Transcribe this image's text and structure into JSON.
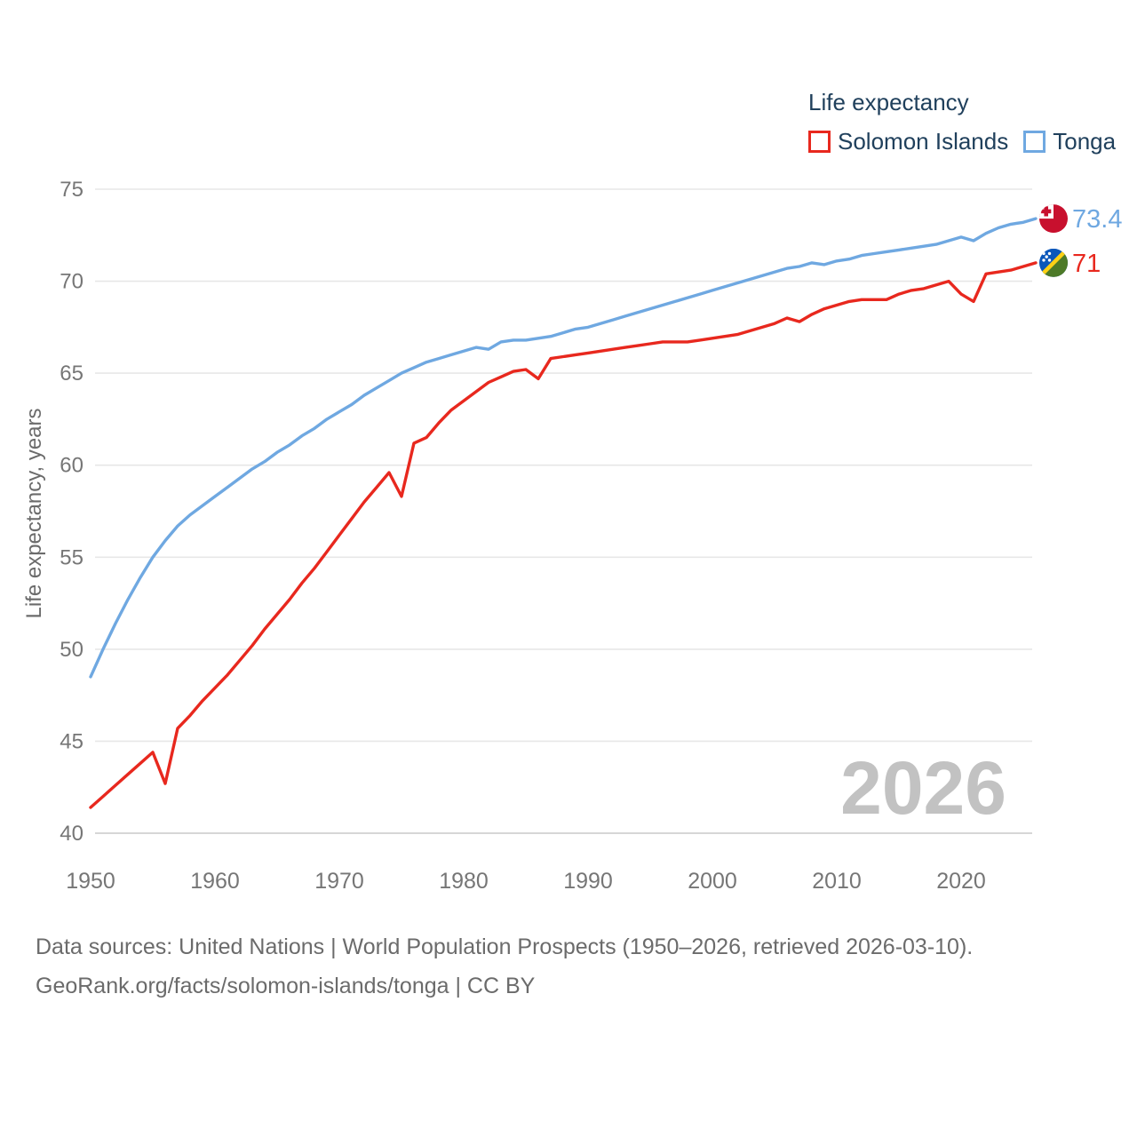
{
  "legend": {
    "title": "Life expectancy",
    "series": [
      {
        "label": "Solomon Islands",
        "color": "#E8281E"
      },
      {
        "label": "Tonga",
        "color": "#6FA8E1"
      }
    ]
  },
  "watermark": "2026",
  "footer": {
    "line1": "Data sources: United Nations | World Population Prospects (1950–2026, retrieved 2026-03-10).",
    "line2": "GeoRank.org/facts/solomon-islands/tonga | CC BY"
  },
  "colors": {
    "tick_label": "#767676",
    "axis_title": "#6b6b6b",
    "gridline": "#e7e7e7",
    "gridline_bottom": "#c9c9c9",
    "watermark": "#c2c2c2"
  },
  "chart_data": {
    "type": "line",
    "title": "Life expectancy",
    "ylabel": "Life expectancy, years",
    "x": {
      "start": 1950,
      "end": 2026,
      "step": 1
    },
    "x_ticks": [
      1950,
      1960,
      1970,
      1980,
      1990,
      2000,
      2010,
      2020
    ],
    "y_ticks": [
      40,
      45,
      50,
      55,
      60,
      65,
      70,
      75
    ],
    "ylim": [
      40,
      75
    ],
    "grid": "horizontal",
    "legend_position": "top-right",
    "series": [
      {
        "name": "Solomon Islands",
        "color": "#E8281E",
        "flag_icon": "solomon-islands-flag-icon",
        "end_label": "71",
        "end_value": 71.0,
        "values": [
          41.4,
          42.0,
          42.6,
          43.2,
          43.8,
          44.4,
          42.7,
          45.7,
          46.4,
          47.2,
          47.9,
          48.6,
          49.4,
          50.2,
          51.1,
          51.9,
          52.7,
          53.6,
          54.4,
          55.3,
          56.2,
          57.1,
          58.0,
          58.8,
          59.6,
          58.3,
          61.2,
          61.5,
          62.3,
          63.0,
          63.5,
          64.0,
          64.5,
          64.8,
          65.1,
          65.2,
          64.7,
          65.8,
          65.9,
          66.0,
          66.1,
          66.2,
          66.3,
          66.4,
          66.5,
          66.6,
          66.7,
          66.7,
          66.7,
          66.8,
          66.9,
          67.0,
          67.1,
          67.3,
          67.5,
          67.7,
          68.0,
          67.8,
          68.2,
          68.5,
          68.7,
          68.9,
          69.0,
          69.0,
          69.0,
          69.3,
          69.5,
          69.6,
          69.8,
          70.0,
          69.3,
          68.9,
          70.4,
          70.5,
          70.6,
          70.8,
          71.0
        ]
      },
      {
        "name": "Tonga",
        "color": "#6FA8E1",
        "flag_icon": "tonga-flag-icon",
        "end_label": "73.4",
        "end_value": 73.4,
        "values": [
          48.5,
          50.0,
          51.4,
          52.7,
          53.9,
          55.0,
          55.9,
          56.7,
          57.3,
          57.8,
          58.3,
          58.8,
          59.3,
          59.8,
          60.2,
          60.7,
          61.1,
          61.6,
          62.0,
          62.5,
          62.9,
          63.3,
          63.8,
          64.2,
          64.6,
          65.0,
          65.3,
          65.6,
          65.8,
          66.0,
          66.2,
          66.4,
          66.3,
          66.7,
          66.8,
          66.8,
          66.9,
          67.0,
          67.2,
          67.4,
          67.5,
          67.7,
          67.9,
          68.1,
          68.3,
          68.5,
          68.7,
          68.9,
          69.1,
          69.3,
          69.5,
          69.7,
          69.9,
          70.1,
          70.3,
          70.5,
          70.7,
          70.8,
          71.0,
          70.9,
          71.1,
          71.2,
          71.4,
          71.5,
          71.6,
          71.7,
          71.8,
          71.9,
          72.0,
          72.2,
          72.4,
          72.2,
          72.6,
          72.9,
          73.1,
          73.2,
          73.4
        ]
      }
    ]
  }
}
